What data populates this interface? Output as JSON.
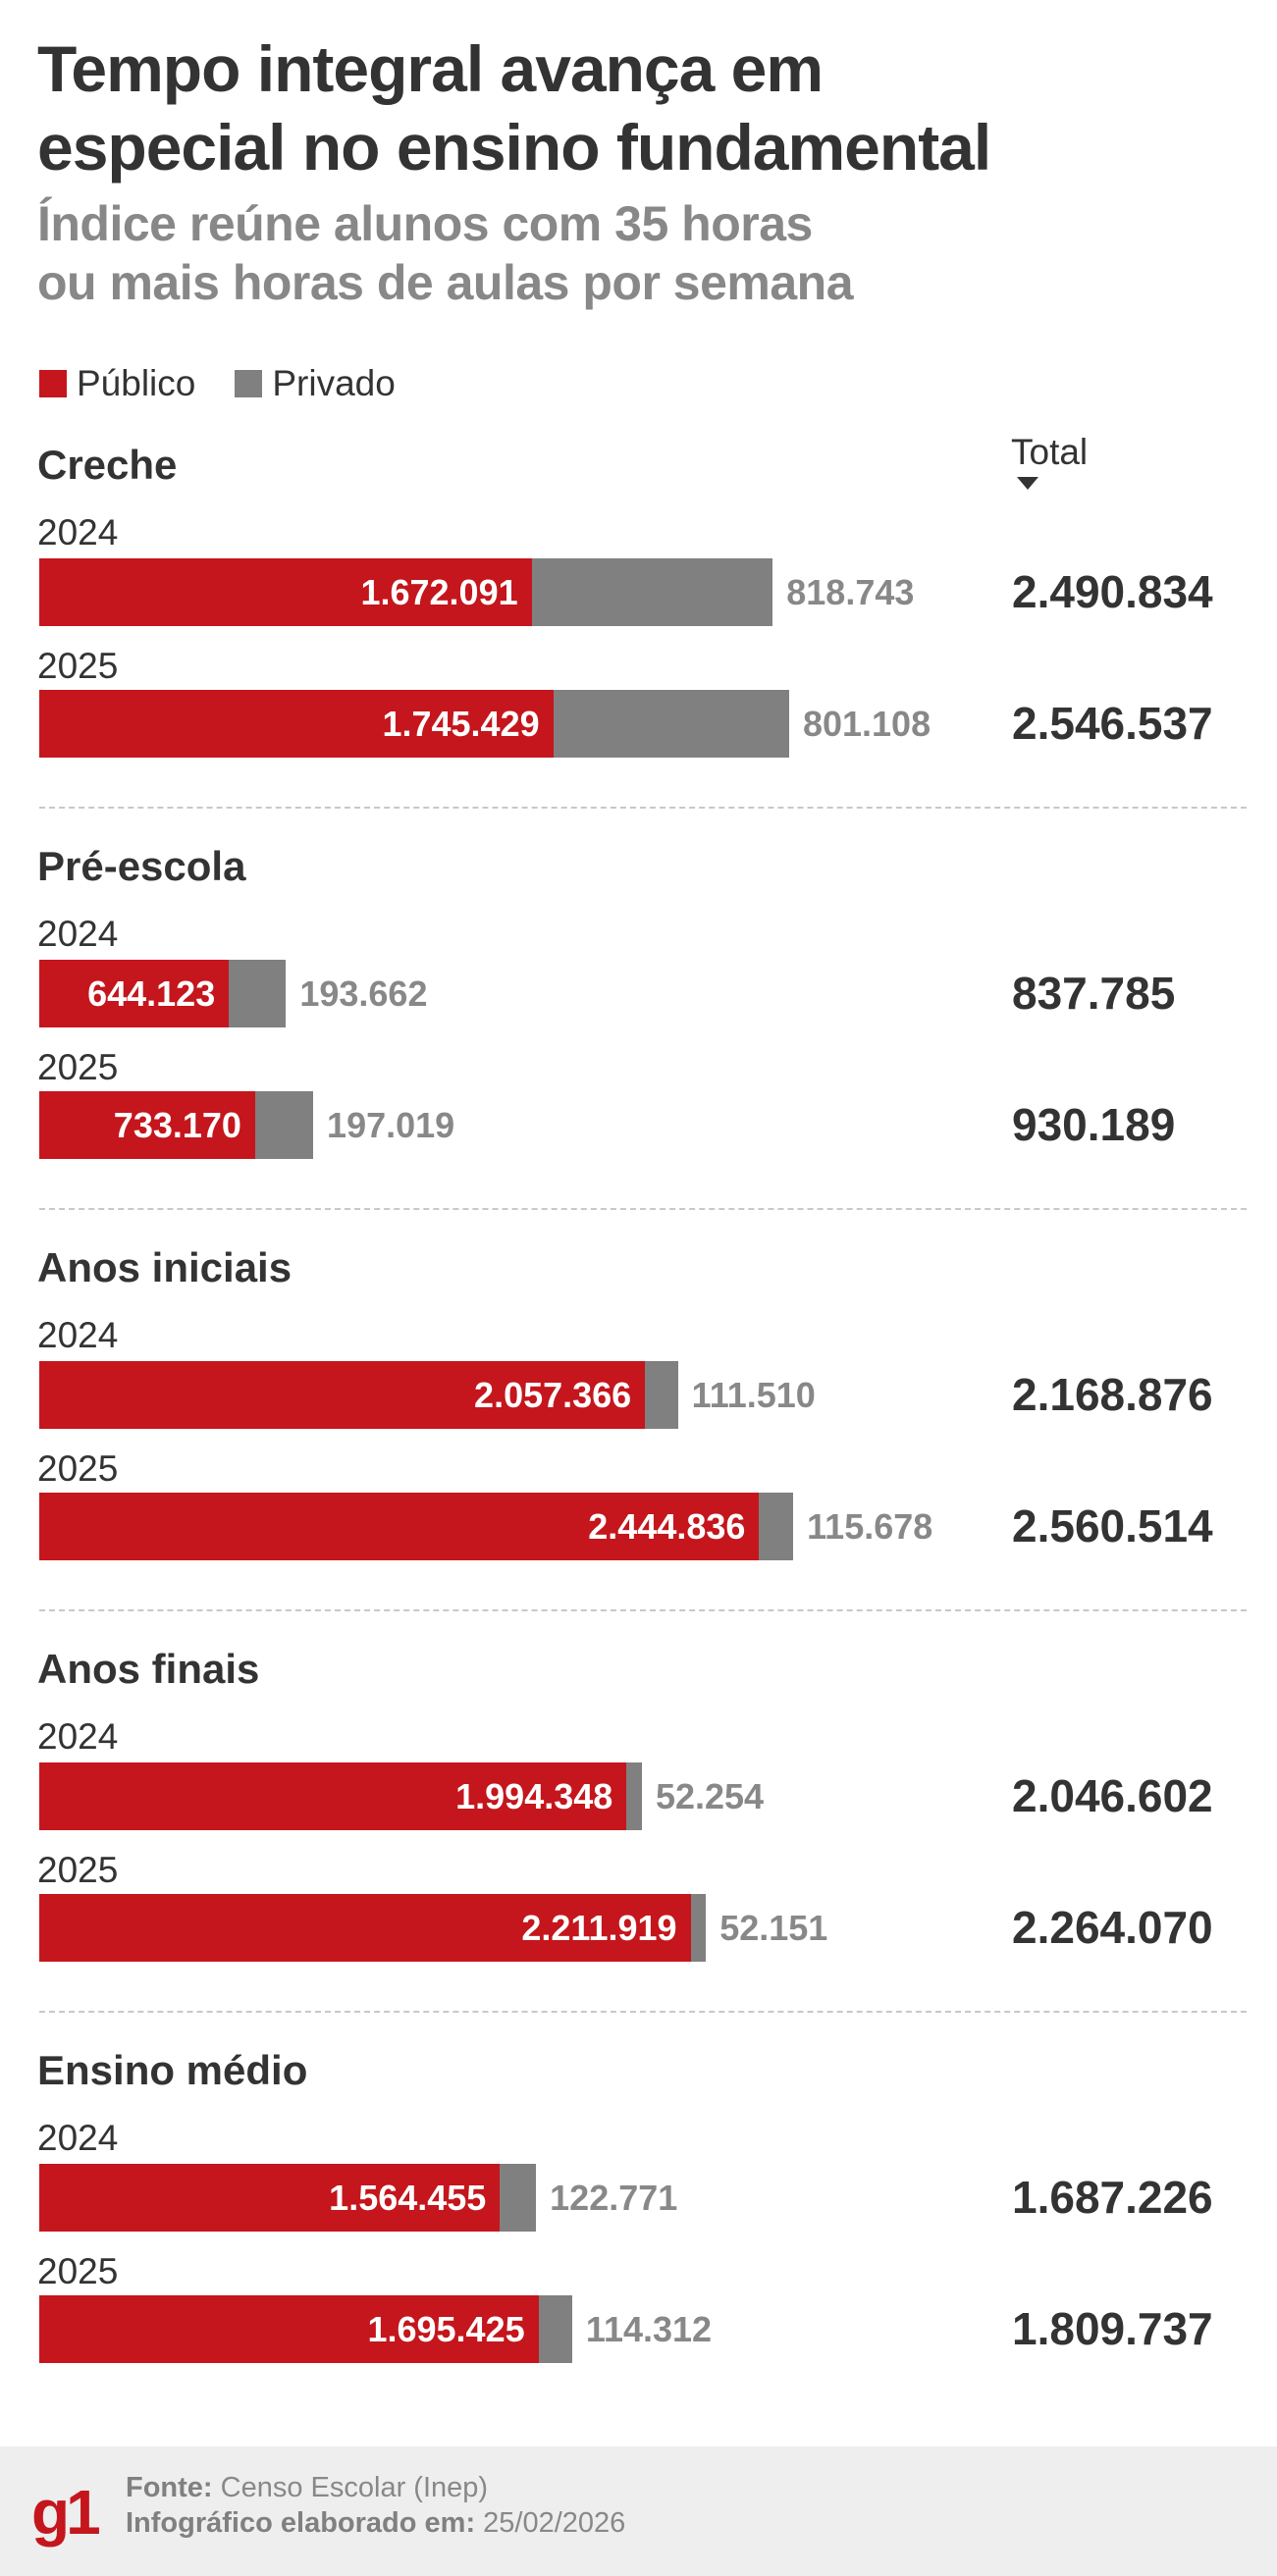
{
  "title": [
    "Tempo integral avança em",
    "especial no ensino fundamental"
  ],
  "subtitle": [
    "Índice reúne alunos com 35 horas",
    "ou mais horas de aulas por semana"
  ],
  "legend": [
    {
      "label": "Público",
      "color": "#c4161c"
    },
    {
      "label": "Privado",
      "color": "#808080"
    }
  ],
  "total_header": "Total",
  "chart_data": {
    "type": "bar",
    "orientation": "horizontal",
    "stacked": true,
    "title": "Tempo integral avança em especial no ensino fundamental",
    "subtitle": "Índice reúne alunos com 35 horas ou mais horas de aulas por semana",
    "legend_position": "top-left",
    "grid": false,
    "series_names": [
      "Público",
      "Privado"
    ],
    "groups": [
      {
        "name": "Creche",
        "rows": [
          {
            "year": "2024",
            "publico": "1.672.091",
            "privado": "818.743",
            "total": "2.490.834",
            "publico_value": 1672091,
            "privado_value": 818743
          },
          {
            "year": "2025",
            "publico": "1.745.429",
            "privado": "801.108",
            "total": "2.546.537",
            "publico_value": 1745429,
            "privado_value": 801108
          }
        ]
      },
      {
        "name": "Pré-escola",
        "rows": [
          {
            "year": "2024",
            "publico": "644.123",
            "privado": "193.662",
            "total": "837.785",
            "publico_value": 644123,
            "privado_value": 193662
          },
          {
            "year": "2025",
            "publico": "733.170",
            "privado": "197.019",
            "total": "930.189",
            "publico_value": 733170,
            "privado_value": 197019
          }
        ]
      },
      {
        "name": "Anos iniciais",
        "rows": [
          {
            "year": "2024",
            "publico": "2.057.366",
            "privado": "111.510",
            "total": "2.168.876",
            "publico_value": 2057366,
            "privado_value": 111510
          },
          {
            "year": "2025",
            "publico": "2.444.836",
            "privado": "115.678",
            "total": "2.560.514",
            "publico_value": 2444836,
            "privado_value": 115678
          }
        ]
      },
      {
        "name": "Anos finais",
        "rows": [
          {
            "year": "2024",
            "publico": "1.994.348",
            "privado": "52.254",
            "total": "2.046.602",
            "publico_value": 1994348,
            "privado_value": 52254
          },
          {
            "year": "2025",
            "publico": "2.211.919",
            "privado": "52.151",
            "total": "2.264.070",
            "publico_value": 2211919,
            "privado_value": 52151
          }
        ]
      },
      {
        "name": "Ensino médio",
        "rows": [
          {
            "year": "2024",
            "publico": "1.564.455",
            "privado": "122.771",
            "total": "1.687.226",
            "publico_value": 1564455,
            "privado_value": 122771
          },
          {
            "year": "2025",
            "publico": "1.695.425",
            "privado": "114.312",
            "total": "1.809.737",
            "publico_value": 1695425,
            "privado_value": 114312
          }
        ]
      }
    ]
  },
  "footer": {
    "logo": "g1",
    "source_label": "Fonte:",
    "source": "Censo Escolar (Inep)",
    "date_label": "Infográfico elaborado em:",
    "date": "25/02/2026"
  }
}
